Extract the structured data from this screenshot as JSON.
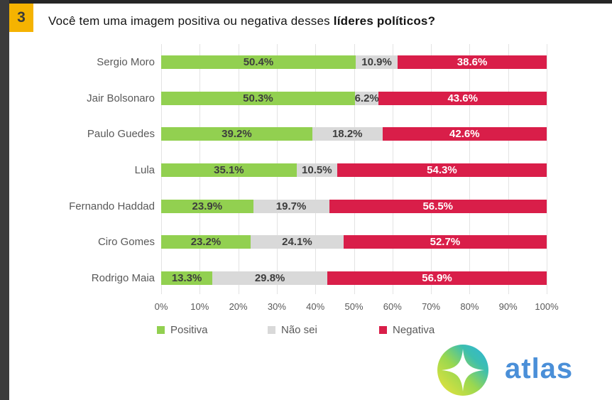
{
  "page": {
    "question_number": "3",
    "badge_color": "#F5B301",
    "title_regular": "Você tem uma imagem positiva ou negativa desses ",
    "title_bold": "líderes políticos?"
  },
  "chart_data": {
    "type": "bar",
    "stacked": true,
    "orientation": "horizontal",
    "title": "Você tem uma imagem positiva ou negativa desses líderes políticos?",
    "categories": [
      "Sergio Moro",
      "Jair Bolsonaro",
      "Paulo Guedes",
      "Lula",
      "Fernando Haddad",
      "Ciro Gomes",
      "Rodrigo Maia"
    ],
    "series": [
      {
        "name": "Positiva",
        "color": "#92D050",
        "label_color": "#3d3d3d",
        "values": [
          50.4,
          50.3,
          39.2,
          35.1,
          23.9,
          23.2,
          13.3
        ]
      },
      {
        "name": "Não sei",
        "color": "#D9D9D9",
        "label_color": "#3d3d3d",
        "values": [
          10.9,
          6.2,
          18.2,
          10.5,
          19.7,
          24.1,
          29.8
        ]
      },
      {
        "name": "Negativa",
        "color": "#D91E49",
        "label_color": "#ffffff",
        "values": [
          38.6,
          43.6,
          42.6,
          54.3,
          56.5,
          52.7,
          56.9
        ]
      }
    ],
    "x_ticks": [
      "0%",
      "10%",
      "20%",
      "30%",
      "40%",
      "50%",
      "60%",
      "70%",
      "80%",
      "90%",
      "100%"
    ],
    "xlim": [
      0,
      100
    ],
    "value_suffix": "%",
    "grid": "vertical",
    "legend_position": "bottom"
  },
  "branding": {
    "logo_text": "atlas",
    "logo_text_color": "#4A8FD8",
    "logo_gradient": [
      "#F0E33B",
      "#9AD84F",
      "#3DBFAE",
      "#2FB4DC"
    ]
  }
}
